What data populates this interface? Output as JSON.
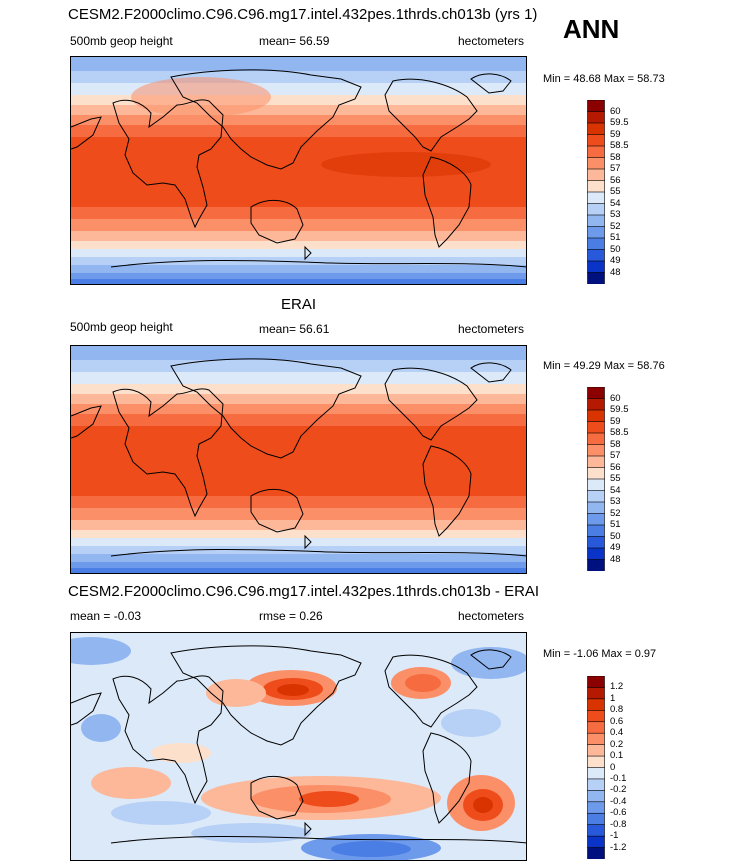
{
  "header": {
    "top_title": "CESM2.F2000climo.C96.C96.mg17.intel.432pes.1thrds.ch013b (yrs 1)",
    "season": "ANN"
  },
  "panels": [
    {
      "title": "",
      "left_label": "500mb geop height",
      "center_label": "mean=  56.59",
      "right_label": "hectometers",
      "minmax": "Min =  48.68 Max =  58.73"
    },
    {
      "title": "ERAI",
      "left_label": "500mb geop height",
      "center_label": "mean=  56.61",
      "right_label": "hectometers",
      "minmax": "Min =  49.29 Max =  58.76"
    },
    {
      "title": "CESM2.F2000climo.C96.C96.mg17.intel.432pes.1thrds.ch013b - ERAI",
      "left_label": "mean =  -0.03",
      "center_label": "rmse =   0.26",
      "right_label": "hectometers",
      "minmax": "Min =  -1.06 Max =   0.97"
    }
  ],
  "chart_data": [
    {
      "type": "heatmap",
      "variable": "500mb geop height",
      "units": "hectometers",
      "mean": 56.59,
      "min": 48.68,
      "max": 58.73,
      "colorbar_levels": [
        "60",
        "59.5",
        "59",
        "58.5",
        "58",
        "57",
        "56",
        "55",
        "54",
        "53",
        "52",
        "51",
        "50",
        "49",
        "48"
      ],
      "colorbar_colors": [
        "#8b0000",
        "#b51a00",
        "#d93300",
        "#ee4c1a",
        "#f76b40",
        "#fb9068",
        "#fcb898",
        "#fde0cc",
        "#dce9f9",
        "#b7d0f5",
        "#92b6f0",
        "#6e9aeb",
        "#4a7ee4",
        "#2859db",
        "#0a33c8",
        "#00107f"
      ]
    },
    {
      "type": "heatmap",
      "variable": "500mb geop height",
      "units": "hectometers",
      "mean": 56.61,
      "min": 49.29,
      "max": 58.76,
      "colorbar_levels": [
        "60",
        "59.5",
        "59",
        "58.5",
        "58",
        "57",
        "56",
        "55",
        "54",
        "53",
        "52",
        "51",
        "50",
        "49",
        "48"
      ],
      "colorbar_colors": [
        "#8b0000",
        "#b51a00",
        "#d93300",
        "#ee4c1a",
        "#f76b40",
        "#fb9068",
        "#fcb898",
        "#fde0cc",
        "#dce9f9",
        "#b7d0f5",
        "#92b6f0",
        "#6e9aeb",
        "#4a7ee4",
        "#2859db",
        "#0a33c8",
        "#00107f"
      ]
    },
    {
      "type": "heatmap",
      "units": "hectometers",
      "mean": -0.03,
      "rmse": 0.26,
      "min": -1.06,
      "max": 0.97,
      "colorbar_levels": [
        "1.2",
        "1",
        "0.8",
        "0.6",
        "0.4",
        "0.2",
        "0.1",
        "0",
        "-0.1",
        "-0.2",
        "-0.4",
        "-0.6",
        "-0.8",
        "-1",
        "-1.2"
      ],
      "colorbar_colors": [
        "#8b0000",
        "#b51a00",
        "#d93300",
        "#ee4c1a",
        "#f76b40",
        "#fb9068",
        "#fcb898",
        "#fde0cc",
        "#dce9f9",
        "#b7d0f5",
        "#92b6f0",
        "#6e9aeb",
        "#4a7ee4",
        "#2859db",
        "#0a33c8",
        "#00107f"
      ]
    }
  ]
}
